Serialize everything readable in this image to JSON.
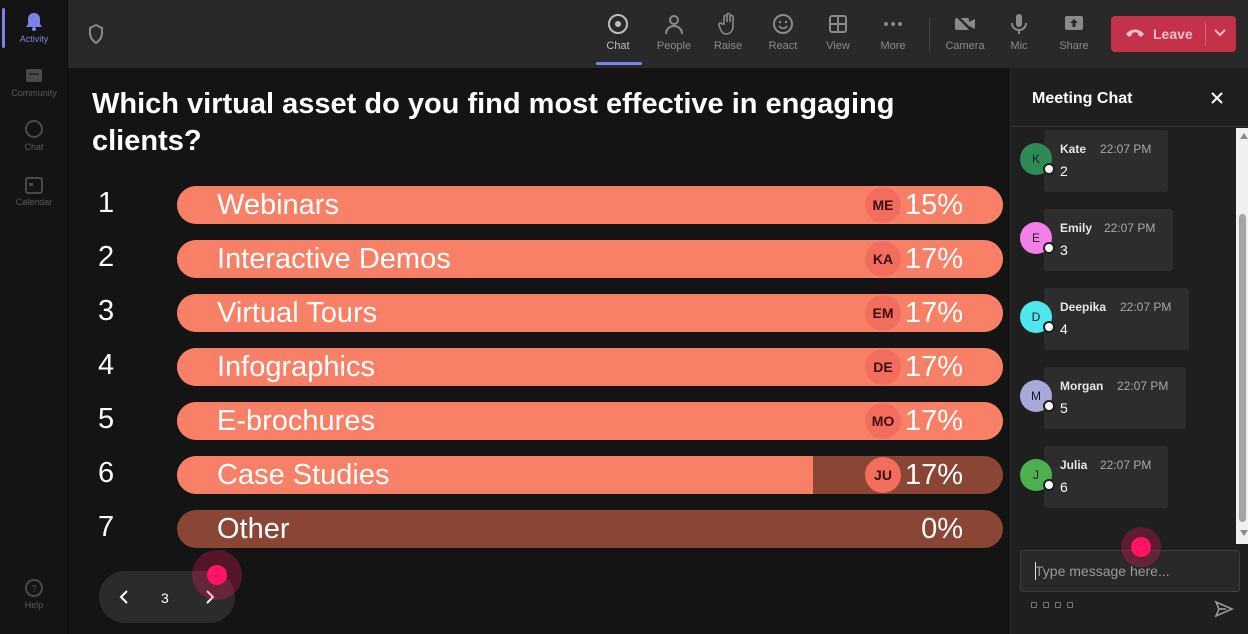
{
  "rail": {
    "items": [
      {
        "label": "Activity",
        "icon": "bell-icon",
        "active": true
      },
      {
        "label": "Community",
        "icon": "community-icon",
        "active": false
      },
      {
        "label": "Chat",
        "icon": "chat-icon",
        "active": false
      },
      {
        "label": "Calendar",
        "icon": "calendar-icon",
        "active": false
      },
      {
        "label": "Help",
        "icon": "help-icon",
        "active": false
      }
    ]
  },
  "toolbar": {
    "buttons": [
      {
        "label": "Chat",
        "icon": "chat-icon",
        "active": true
      },
      {
        "label": "People",
        "icon": "people-icon",
        "active": false
      },
      {
        "label": "Raise",
        "icon": "raise-hand-icon",
        "active": false
      },
      {
        "label": "React",
        "icon": "smiley-icon",
        "active": false
      },
      {
        "label": "View",
        "icon": "grid-icon",
        "active": false
      },
      {
        "label": "More",
        "icon": "more-icon",
        "active": false
      },
      {
        "label": "Camera",
        "icon": "camera-off-icon",
        "active": false
      },
      {
        "label": "Mic",
        "icon": "mic-icon",
        "active": false
      },
      {
        "label": "Share",
        "icon": "share-icon",
        "active": false
      }
    ],
    "leave_label": "Leave",
    "leave_color": "#c4314b",
    "accent_color": "#7b83eb"
  },
  "poll": {
    "question": "Which virtual asset do you find most effective in engaging clients?",
    "bar_color": "#f88066",
    "bar_track_color": "#8a4535",
    "options": [
      {
        "num": "1",
        "label": "Webinars",
        "percent": "15%",
        "fill": 1.0,
        "avatar": "ME"
      },
      {
        "num": "2",
        "label": "Interactive Demos",
        "percent": "17%",
        "fill": 1.0,
        "avatar": "KA"
      },
      {
        "num": "3",
        "label": "Virtual Tours",
        "percent": "17%",
        "fill": 1.0,
        "avatar": "EM"
      },
      {
        "num": "4",
        "label": "Infographics",
        "percent": "17%",
        "fill": 1.0,
        "avatar": "DE"
      },
      {
        "num": "5",
        "label": "E-brochures",
        "percent": "17%",
        "fill": 1.0,
        "avatar": "MO"
      },
      {
        "num": "6",
        "label": "Case Studies",
        "percent": "17%",
        "fill": 0.77,
        "avatar": "JU"
      },
      {
        "num": "7",
        "label": "Other",
        "percent": "0%",
        "fill": 0.0,
        "avatar": ""
      }
    ]
  },
  "pager": {
    "page": "3"
  },
  "chat": {
    "title": "Meeting Chat",
    "messages": [
      {
        "initial": "K",
        "name": "Kate",
        "time": "22:07 PM",
        "text": "2",
        "color": "#2e8b57"
      },
      {
        "initial": "E",
        "name": "Emily",
        "time": "22:07 PM",
        "text": "3",
        "color": "#f47fe8"
      },
      {
        "initial": "D",
        "name": "Deepika",
        "time": "22:07 PM",
        "text": "4",
        "color": "#4de8ee"
      },
      {
        "initial": "M",
        "name": "Morgan",
        "time": "22:07 PM",
        "text": "5",
        "color": "#a9a9d9"
      },
      {
        "initial": "J",
        "name": "Julia",
        "time": "22:07 PM",
        "text": "6",
        "color": "#4caf50"
      }
    ],
    "input_placeholder": "Type message here..."
  }
}
